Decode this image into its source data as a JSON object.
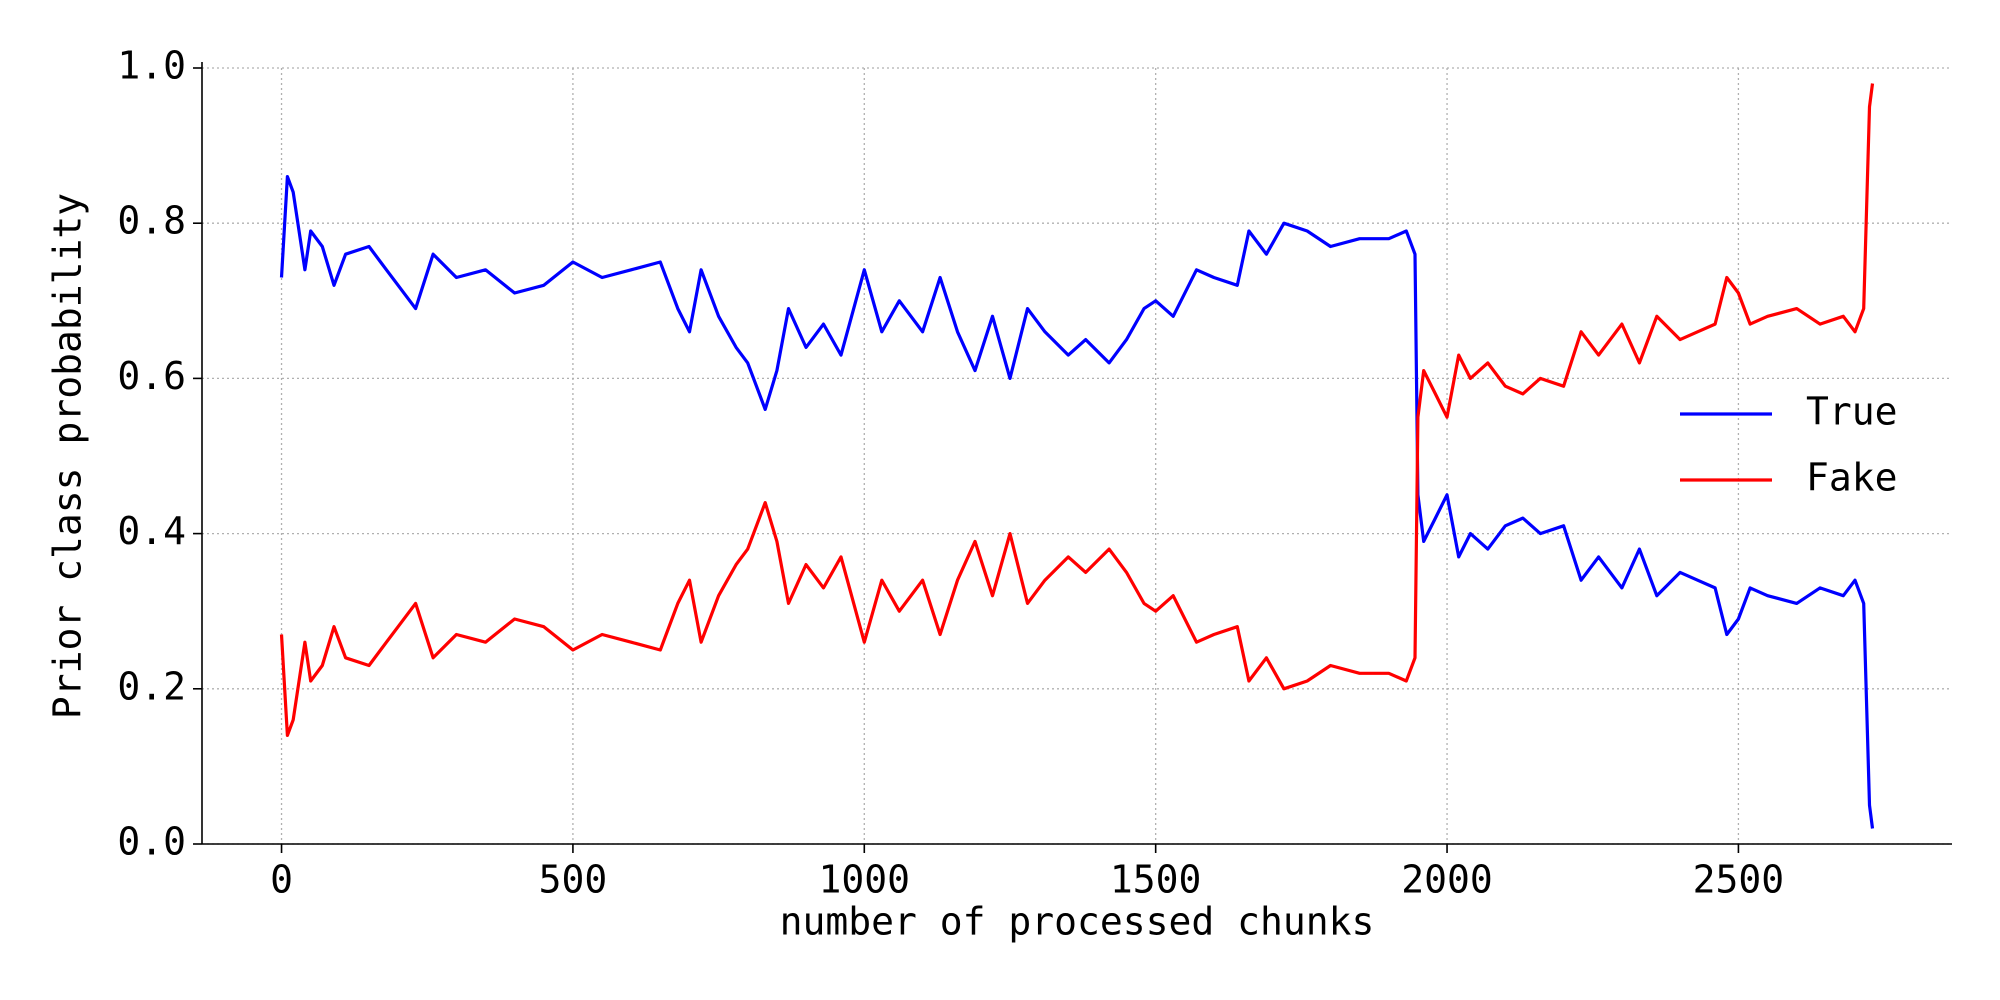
{
  "chart_data": {
    "type": "line",
    "xlabel": "number of processed chunks",
    "ylabel": "Prior class probability",
    "x": [
      0,
      10,
      20,
      40,
      50,
      70,
      90,
      110,
      150,
      180,
      200,
      230,
      260,
      300,
      350,
      400,
      450,
      500,
      550,
      600,
      650,
      680,
      700,
      720,
      750,
      780,
      800,
      830,
      850,
      870,
      900,
      930,
      960,
      1000,
      1030,
      1060,
      1100,
      1130,
      1160,
      1190,
      1220,
      1250,
      1280,
      1310,
      1350,
      1380,
      1420,
      1450,
      1480,
      1500,
      1530,
      1570,
      1600,
      1640,
      1660,
      1690,
      1720,
      1760,
      1800,
      1850,
      1900,
      1930,
      1945,
      1950,
      1960,
      1980,
      2000,
      2020,
      2040,
      2070,
      2100,
      2130,
      2160,
      2200,
      2230,
      2260,
      2300,
      2330,
      2360,
      2400,
      2430,
      2460,
      2480,
      2500,
      2520,
      2550,
      2600,
      2640,
      2680,
      2700,
      2715,
      2725,
      2730
    ],
    "series": [
      {
        "name": "True",
        "color": "#0000ff",
        "values": [
          0.73,
          0.86,
          0.84,
          0.74,
          0.79,
          0.77,
          0.72,
          0.76,
          0.77,
          0.74,
          0.72,
          0.69,
          0.76,
          0.73,
          0.74,
          0.71,
          0.72,
          0.75,
          0.73,
          0.74,
          0.75,
          0.69,
          0.66,
          0.74,
          0.68,
          0.64,
          0.62,
          0.56,
          0.61,
          0.69,
          0.64,
          0.67,
          0.63,
          0.74,
          0.66,
          0.7,
          0.66,
          0.73,
          0.66,
          0.61,
          0.68,
          0.6,
          0.69,
          0.66,
          0.63,
          0.65,
          0.62,
          0.65,
          0.69,
          0.7,
          0.68,
          0.74,
          0.73,
          0.72,
          0.79,
          0.76,
          0.8,
          0.79,
          0.77,
          0.78,
          0.78,
          0.79,
          0.76,
          0.45,
          0.39,
          0.42,
          0.45,
          0.37,
          0.4,
          0.38,
          0.41,
          0.42,
          0.4,
          0.41,
          0.34,
          0.37,
          0.33,
          0.38,
          0.32,
          0.35,
          0.34,
          0.33,
          0.27,
          0.29,
          0.33,
          0.32,
          0.31,
          0.33,
          0.32,
          0.34,
          0.31,
          0.05,
          0.02
        ]
      },
      {
        "name": "Fake",
        "color": "#ff0000",
        "values": [
          0.27,
          0.14,
          0.16,
          0.26,
          0.21,
          0.23,
          0.28,
          0.24,
          0.23,
          0.26,
          0.28,
          0.31,
          0.24,
          0.27,
          0.26,
          0.29,
          0.28,
          0.25,
          0.27,
          0.26,
          0.25,
          0.31,
          0.34,
          0.26,
          0.32,
          0.36,
          0.38,
          0.44,
          0.39,
          0.31,
          0.36,
          0.33,
          0.37,
          0.26,
          0.34,
          0.3,
          0.34,
          0.27,
          0.34,
          0.39,
          0.32,
          0.4,
          0.31,
          0.34,
          0.37,
          0.35,
          0.38,
          0.35,
          0.31,
          0.3,
          0.32,
          0.26,
          0.27,
          0.28,
          0.21,
          0.24,
          0.2,
          0.21,
          0.23,
          0.22,
          0.22,
          0.21,
          0.24,
          0.55,
          0.61,
          0.58,
          0.55,
          0.63,
          0.6,
          0.62,
          0.59,
          0.58,
          0.6,
          0.59,
          0.66,
          0.63,
          0.67,
          0.62,
          0.68,
          0.65,
          0.66,
          0.67,
          0.73,
          0.71,
          0.67,
          0.68,
          0.69,
          0.67,
          0.68,
          0.66,
          0.69,
          0.95,
          0.98
        ]
      }
    ],
    "xlim": [
      -136.5,
      2866.5
    ],
    "xticks": [
      0,
      500,
      1000,
      1500,
      2000,
      2500
    ],
    "ylim": [
      0,
      1
    ],
    "yticks": [
      {
        "value": 0,
        "label": "0.0"
      },
      0.2,
      0.4,
      0.6,
      0.8,
      {
        "value": 1,
        "label": "1.0"
      }
    ],
    "grid": true,
    "legend": "center right"
  }
}
